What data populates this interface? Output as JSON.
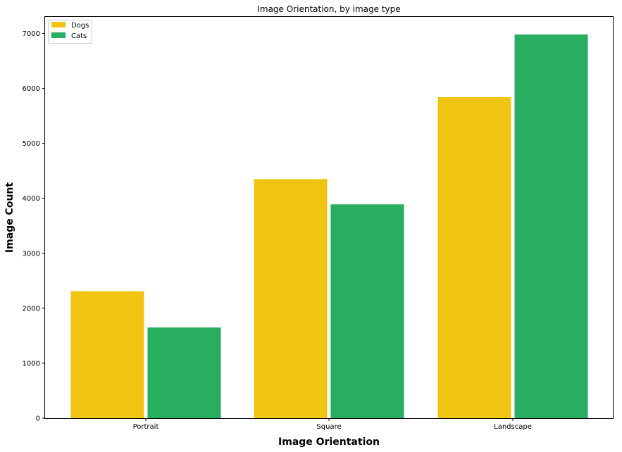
{
  "chart_data": {
    "type": "bar",
    "title": "Image Orientation, by image type",
    "xlabel": "Image Orientation",
    "ylabel": "Image Count",
    "categories": [
      "Portrait",
      "Square",
      "Landscape"
    ],
    "series": [
      {
        "name": "Dogs",
        "color": "#f0c512",
        "values": [
          2310,
          4350,
          5840
        ]
      },
      {
        "name": "Cats",
        "color": "#27ae60",
        "values": [
          1650,
          3890,
          6980
        ]
      }
    ],
    "ylim": [
      0,
      7300
    ],
    "yticks": [
      0,
      1000,
      2000,
      3000,
      4000,
      5000,
      6000,
      7000
    ],
    "ytick_labels": [
      "0",
      "1000",
      "2000",
      "3000",
      "4000",
      "5000",
      "6000",
      "7000"
    ],
    "legend_position": "upper-left",
    "grid": false
  }
}
